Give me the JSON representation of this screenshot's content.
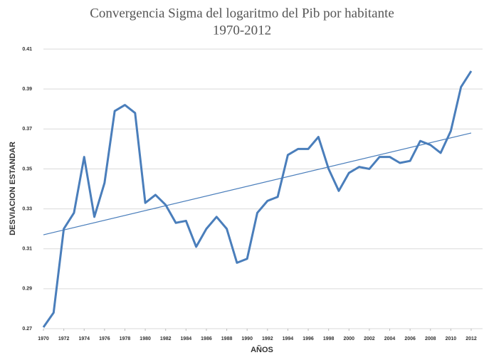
{
  "chart_data": {
    "type": "line",
    "title": "Convergencia Sigma del logaritmo del Pib por habitante",
    "subtitle": "1970-2012",
    "x_label": "AÑOS",
    "y_label": "DESVIACION ESTANDAR",
    "x": [
      1970,
      1971,
      1972,
      1973,
      1974,
      1975,
      1976,
      1977,
      1978,
      1979,
      1980,
      1981,
      1982,
      1983,
      1984,
      1985,
      1986,
      1987,
      1988,
      1989,
      1990,
      1991,
      1992,
      1993,
      1994,
      1995,
      1996,
      1997,
      1998,
      1999,
      2000,
      2001,
      2002,
      2003,
      2004,
      2005,
      2006,
      2007,
      2008,
      2009,
      2010,
      2011,
      2012
    ],
    "series": [
      {
        "color": "#4a7ebb",
        "values": [
          0.2707,
          0.278,
          0.32,
          0.328,
          0.356,
          0.326,
          0.343,
          0.379,
          0.382,
          0.378,
          0.333,
          0.337,
          0.332,
          0.323,
          0.324,
          0.311,
          0.32,
          0.326,
          0.32,
          0.303,
          0.305,
          0.328,
          0.334,
          0.336,
          0.357,
          0.36,
          0.36,
          0.366,
          0.35,
          0.339,
          0.348,
          0.351,
          0.35,
          0.356,
          0.356,
          0.353,
          0.354,
          0.364,
          0.362,
          0.358,
          0.369,
          0.391,
          0.399
        ]
      }
    ],
    "trendline": {
      "color": "#4a7ebb",
      "x": [
        1970,
        2012
      ],
      "values": [
        0.317,
        0.368
      ]
    },
    "xlim": [
      1970,
      2012
    ],
    "xticks": [
      1970,
      1972,
      1974,
      1976,
      1978,
      1980,
      1982,
      1984,
      1986,
      1988,
      1990,
      1992,
      1994,
      1996,
      1998,
      2000,
      2002,
      2004,
      2006,
      2008,
      2010,
      2012
    ],
    "ylim": [
      0.27,
      0.41
    ],
    "yticks": [
      0.27,
      0.29,
      0.31,
      0.33,
      0.35,
      0.37,
      0.39,
      0.41
    ],
    "grid": true
  }
}
